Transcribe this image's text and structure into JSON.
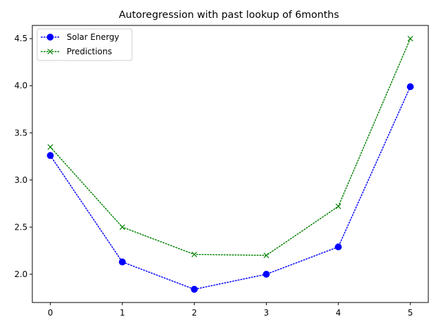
{
  "chart_data": {
    "type": "line",
    "title": "Autoregression with past lookup of 6months",
    "xlabel": "",
    "ylabel": "",
    "x": [
      0,
      1,
      2,
      3,
      4,
      5
    ],
    "x_ticks": [
      "0",
      "1",
      "2",
      "3",
      "4",
      "5"
    ],
    "y_ticks": [
      "2.0",
      "2.5",
      "3.0",
      "3.5",
      "4.0",
      "4.5"
    ],
    "xlim": [
      -0.25,
      5.25
    ],
    "ylim": [
      1.7,
      4.64
    ],
    "grid": false,
    "legend_position": "upper-left",
    "series": [
      {
        "name": "Solar Energy",
        "values": [
          3.26,
          2.13,
          1.84,
          2.0,
          2.29,
          3.99
        ],
        "color": "#0000ff",
        "marker": "circle",
        "linestyle": "dotted"
      },
      {
        "name": "Predictions",
        "values": [
          3.35,
          2.5,
          2.21,
          2.2,
          2.72,
          4.5
        ],
        "color": "#008000",
        "marker": "x",
        "linestyle": "dotted"
      }
    ]
  }
}
